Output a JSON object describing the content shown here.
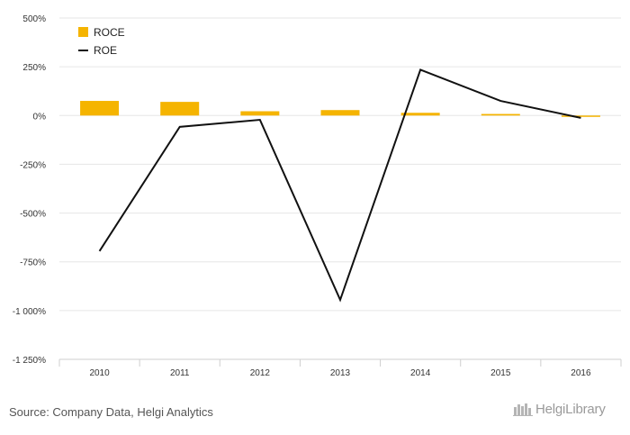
{
  "chart_data": {
    "type": "bar+line",
    "categories": [
      "2010",
      "2011",
      "2012",
      "2013",
      "2014",
      "2015",
      "2016"
    ],
    "series": [
      {
        "name": "ROCE",
        "type": "bar",
        "color": "#f5b400",
        "values": [
          75,
          70,
          22,
          28,
          14,
          8,
          -5
        ]
      },
      {
        "name": "ROE",
        "type": "line",
        "color": "#111111",
        "values": [
          -695,
          -58,
          -22,
          -945,
          235,
          75,
          -12
        ]
      }
    ],
    "y_ticks": [
      "500%",
      "250%",
      "0%",
      "-250%",
      "-500%",
      "-750%",
      "-1 000%",
      "-1 250%"
    ],
    "ylim": [
      -1250,
      500
    ],
    "legend_position": "top-left",
    "grid": true
  },
  "footer": {
    "source": "Source: Company Data, Helgi Analytics",
    "brand": "HelgiLibrary"
  }
}
